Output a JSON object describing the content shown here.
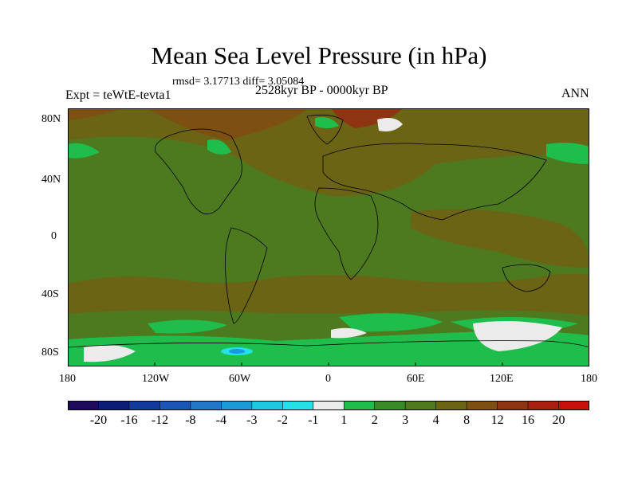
{
  "title": "Mean Sea Level Pressure (in hPa)",
  "stats_line": "rmsd= 3.17713 diff= 3.05084",
  "subtitle": "2528kyr BP - 0000kyr BP",
  "left_label": "Expt = teWtE-tevta1",
  "right_label": "ANN",
  "y_axis": {
    "ticks": [
      "80N",
      "40N",
      "0",
      "40S",
      "80S"
    ]
  },
  "x_axis": {
    "ticks": [
      "180",
      "120W",
      "60W",
      "0",
      "60E",
      "120E",
      "180"
    ]
  },
  "colorbar": {
    "colors": [
      "#1e0a5a",
      "#0a1e78",
      "#12399c",
      "#1b55b5",
      "#2277c9",
      "#1a9bd8",
      "#1ec8e0",
      "#23e1e6",
      "#ebebeb",
      "#1fbe4c",
      "#3a8a28",
      "#4f7a1e",
      "#6b6414",
      "#7d5012",
      "#8e3412",
      "#a81e10",
      "#c8100a"
    ],
    "labels": [
      "-20",
      "-16",
      "-12",
      "-8",
      "-4",
      "-3",
      "-2",
      "-1",
      "1",
      "2",
      "3",
      "4",
      "8",
      "12",
      "16",
      "20"
    ]
  },
  "map_colors": {
    "base": "#4d7a1f",
    "brown": "#6b6414",
    "darkbrown": "#7d5012",
    "rust": "#8e3412",
    "green": "#1fbe4c",
    "white": "#ebebeb",
    "cyan": "#23e1e6",
    "blue": "#1a9bd8"
  }
}
